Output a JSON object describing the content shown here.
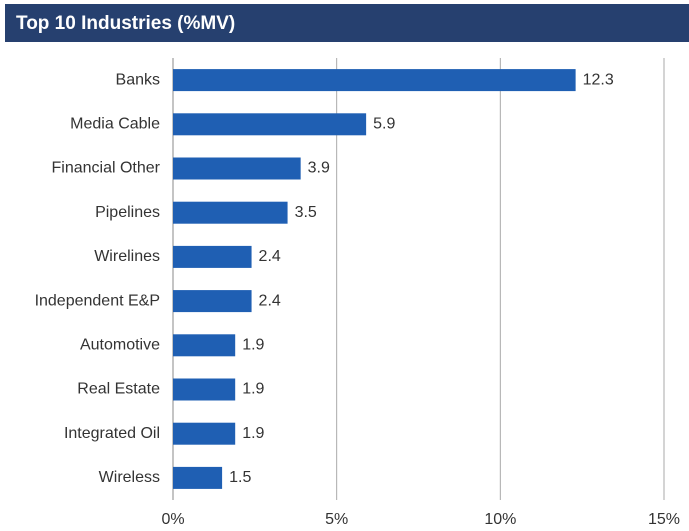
{
  "chart_data": {
    "type": "bar",
    "orientation": "horizontal",
    "title": "Top 10 Industries (%MV)",
    "categories": [
      "Banks",
      "Media Cable",
      "Financial Other",
      "Pipelines",
      "Wirelines",
      "Independent E&P",
      "Automotive",
      "Real Estate",
      "Integrated Oil",
      "Wireless"
    ],
    "values": [
      12.3,
      5.9,
      3.9,
      3.5,
      2.4,
      2.4,
      1.9,
      1.9,
      1.9,
      1.5
    ],
    "color": "#1f5fb3",
    "xlim": [
      0,
      15
    ],
    "xticks": [
      {
        "value": 0,
        "label": "0%"
      },
      {
        "value": 5,
        "label": "5%"
      },
      {
        "value": 10,
        "label": "10%"
      },
      {
        "value": 15,
        "label": "15%"
      }
    ],
    "grid": true
  }
}
